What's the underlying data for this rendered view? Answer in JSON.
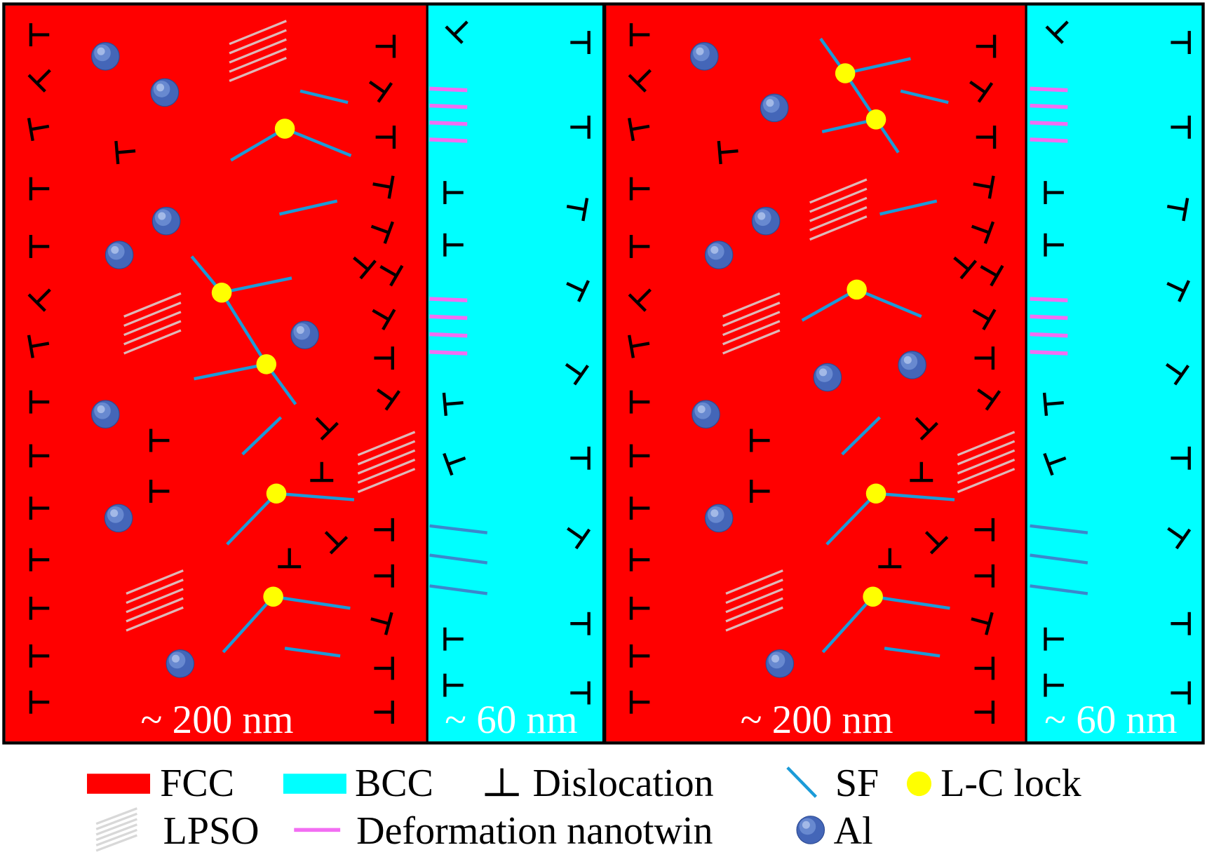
{
  "figure": {
    "panels": [
      {
        "fcc_size_label": "~ 200 nm",
        "bcc_size_label": "~ 60 nm"
      },
      {
        "fcc_size_label": "~ 200 nm",
        "bcc_size_label": "~ 60 nm"
      }
    ]
  },
  "legend": {
    "fcc": {
      "label": "FCC",
      "icon": "fcc-swatch-icon",
      "color": "#ff0000"
    },
    "bcc": {
      "label": "BCC",
      "icon": "bcc-swatch-icon",
      "color": "#00ffff"
    },
    "dislocation": {
      "label": "Dislocation",
      "icon": "dislocation-symbol-icon",
      "color": "#000000"
    },
    "sf": {
      "label": "SF",
      "icon": "stacking-fault-line-icon",
      "color": "#1b9bd8"
    },
    "lc_lock": {
      "label": "L-C lock",
      "icon": "yellow-dot-icon",
      "color": "#ffff00"
    },
    "lpso": {
      "label": "LPSO",
      "icon": "parallel-lines-icon",
      "color": "#d8d8d8"
    },
    "nanotwin": {
      "label": "Deformation nanotwin",
      "icon": "magenta-line-icon",
      "color": "#f26ef2"
    },
    "al": {
      "label": "Al",
      "icon": "blue-sphere-icon",
      "color": "#4466b8"
    }
  },
  "colors": {
    "border": "#000000",
    "size_label_text": "#ffffff",
    "bcc_line_color": "#3b87cc"
  }
}
